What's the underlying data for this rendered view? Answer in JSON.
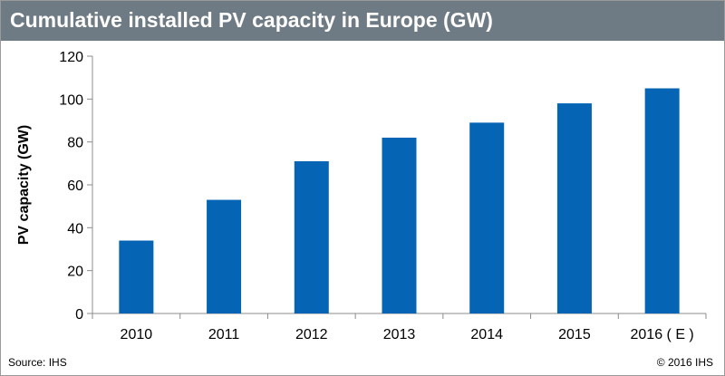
{
  "header": {
    "title": "Cumulative installed PV capacity in Europe (GW)"
  },
  "footer": {
    "source": "Source: IHS",
    "copyright": "© 2016 IHS"
  },
  "colors": {
    "bar": "#0564b3",
    "title_bg": "#6f7b84",
    "axis": "#8c8c8c"
  },
  "chart_data": {
    "type": "bar",
    "categories": [
      "2010",
      "2011",
      "2012",
      "2013",
      "2014",
      "2015",
      "2016 ( E )"
    ],
    "values": [
      34,
      53,
      71,
      82,
      89,
      98,
      105
    ],
    "ylabel": "PV capacity (GW)",
    "xlabel": "",
    "ylim": [
      0,
      120
    ],
    "yticks": [
      0,
      20,
      40,
      60,
      80,
      100,
      120
    ],
    "grid": false,
    "legend": "none"
  }
}
